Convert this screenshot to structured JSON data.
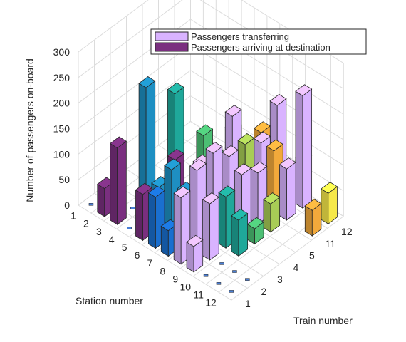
{
  "chart_data": {
    "type": "bar3d",
    "title": "",
    "zlabel": "Number of passengers on-board",
    "xlabel": "Station number",
    "ylabel": "Train number",
    "zlim": [
      0,
      300
    ],
    "z_ticks": [
      "0",
      "50",
      "100",
      "150",
      "200",
      "250",
      "300"
    ],
    "stations": [
      "1",
      "2",
      "3",
      "4",
      "5",
      "6",
      "7",
      "8",
      "9",
      "10",
      "11",
      "12"
    ],
    "trains": [
      "1",
      "2",
      "3",
      "4",
      "5",
      "11",
      "12"
    ],
    "grid": true,
    "legend": {
      "position": "top-right",
      "entries": [
        "Passengers transferring",
        "Passengers arriving at destination"
      ]
    },
    "series_colors": {
      "transferring": "#d9b3ff",
      "arriving": "#7a2f7f"
    },
    "train_colors": [
      "#1a6fcf",
      "#1e8fc2",
      "#1fa89a",
      "#4cbf74",
      "#a8cc56",
      "#f2a93b",
      "#f6e84a"
    ],
    "bars": [
      {
        "station": 2,
        "train": 1,
        "value": 55,
        "kind": "arriving"
      },
      {
        "station": 3,
        "train": 1,
        "value": 150,
        "kind": "arriving"
      },
      {
        "station": 5,
        "train": 1,
        "value": 90,
        "kind": "arriving"
      },
      {
        "station": 6,
        "train": 1,
        "value": 100,
        "kind": "train"
      },
      {
        "station": 7,
        "train": 1,
        "value": 50,
        "kind": "train"
      },
      {
        "station": 4,
        "train": 2,
        "value": 260,
        "kind": "train"
      },
      {
        "station": 5,
        "train": 2,
        "value": 80,
        "kind": "train"
      },
      {
        "station": 6,
        "train": 2,
        "value": 130,
        "kind": "train"
      },
      {
        "station": 7,
        "train": 2,
        "value": 100,
        "kind": "train"
      },
      {
        "station": 5,
        "train": 3,
        "value": 240,
        "kind": "train"
      },
      {
        "station": 5,
        "train": 3,
        "value": 110,
        "kind": "arriving"
      },
      {
        "station": 7,
        "train": 3,
        "value": 120,
        "kind": "train"
      },
      {
        "station": 9,
        "train": 3,
        "value": 100,
        "kind": "train"
      },
      {
        "station": 10,
        "train": 3,
        "value": 70,
        "kind": "train"
      },
      {
        "station": 6,
        "train": 4,
        "value": 150,
        "kind": "train"
      },
      {
        "station": 7,
        "train": 4,
        "value": 120,
        "kind": "train"
      },
      {
        "station": 8,
        "train": 4,
        "value": 100,
        "kind": "train"
      },
      {
        "station": 9,
        "train": 4,
        "value": 65,
        "kind": "train"
      },
      {
        "station": 10,
        "train": 4,
        "value": 30,
        "kind": "train"
      },
      {
        "station": 7,
        "train": 5,
        "value": 150,
        "kind": "train"
      },
      {
        "station": 8,
        "train": 5,
        "value": 140,
        "kind": "train"
      },
      {
        "station": 9,
        "train": 5,
        "value": 90,
        "kind": "train"
      },
      {
        "station": 10,
        "train": 5,
        "value": 55,
        "kind": "train"
      },
      {
        "station": 8,
        "train": 11,
        "value": 140,
        "kind": "train"
      },
      {
        "station": 9,
        "train": 11,
        "value": 120,
        "kind": "train"
      },
      {
        "station": 10,
        "train": 11,
        "value": 90,
        "kind": "train"
      },
      {
        "station": 12,
        "train": 11,
        "value": 50,
        "kind": "train"
      },
      {
        "station": 10,
        "train": 12,
        "value": 90,
        "kind": "train"
      },
      {
        "station": 12,
        "train": 12,
        "value": 60,
        "kind": "train"
      },
      {
        "station": 8,
        "train": 1,
        "value": 130,
        "kind": "transferring"
      },
      {
        "station": 9,
        "train": 1,
        "value": 50,
        "kind": "transferring"
      },
      {
        "station": 8,
        "train": 2,
        "value": 160,
        "kind": "transferring"
      },
      {
        "station": 9,
        "train": 2,
        "value": 110,
        "kind": "transferring"
      },
      {
        "station": 7,
        "train": 3,
        "value": 130,
        "kind": "transferring"
      },
      {
        "station": 8,
        "train": 3,
        "value": 170,
        "kind": "transferring"
      },
      {
        "station": 8,
        "train": 4,
        "value": 140,
        "kind": "transferring"
      },
      {
        "station": 9,
        "train": 4,
        "value": 120,
        "kind": "transferring"
      },
      {
        "station": 7,
        "train": 5,
        "value": 180,
        "kind": "transferring"
      },
      {
        "station": 9,
        "train": 5,
        "value": 100,
        "kind": "transferring"
      },
      {
        "station": 8,
        "train": 11,
        "value": 120,
        "kind": "transferring"
      },
      {
        "station": 10,
        "train": 11,
        "value": 100,
        "kind": "transferring"
      },
      {
        "station": 8,
        "train": 12,
        "value": 170,
        "kind": "transferring"
      },
      {
        "station": 10,
        "train": 12,
        "value": 220,
        "kind": "transferring"
      }
    ]
  }
}
